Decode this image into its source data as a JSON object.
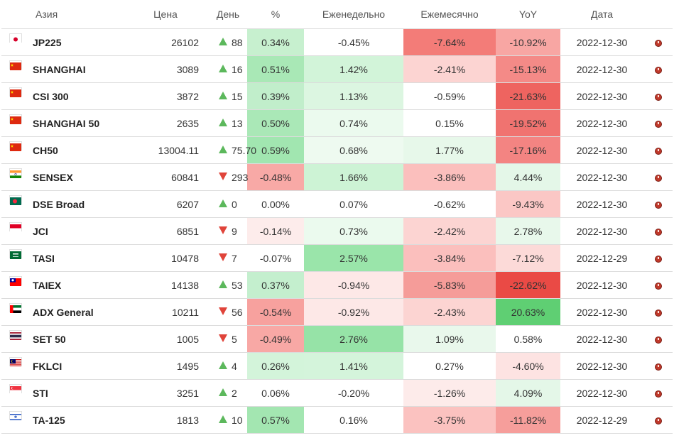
{
  "header": {
    "region": "Азия",
    "price": "Цена",
    "day": "День",
    "pct": "%",
    "weekly": "Еженедельно",
    "monthly": "Ежемесячно",
    "yoy": "YoY",
    "date": "Дата"
  },
  "colors": {
    "up": "#5cb85c",
    "down": "#e0443a"
  },
  "rows": [
    {
      "flag": "japan-flag",
      "name": "JP225",
      "price": "26102",
      "dir": "up",
      "day": "88",
      "pct": "0.34%",
      "weekly": "-0.45%",
      "monthly": "-7.64%",
      "yoy": "-10.92%",
      "date": "2022-12-30",
      "c_pct": "#c7f0cf",
      "c_weekly": "#ffffff",
      "c_monthly": "#f37c78",
      "c_yoy": "#f8a6a3"
    },
    {
      "flag": "china-flag",
      "name": "SHANGHAI",
      "price": "3089",
      "dir": "up",
      "day": "16",
      "pct": "0.51%",
      "weekly": "1.42%",
      "monthly": "-2.41%",
      "yoy": "-15.13%",
      "date": "2022-12-30",
      "c_pct": "#a9e8b6",
      "c_weekly": "#d2f4d9",
      "c_monthly": "#fcd4d2",
      "c_yoy": "#f48a87"
    },
    {
      "flag": "china-flag",
      "name": "CSI 300",
      "price": "3872",
      "dir": "up",
      "day": "15",
      "pct": "0.39%",
      "weekly": "1.13%",
      "monthly": "-0.59%",
      "yoy": "-21.63%",
      "date": "2022-12-30",
      "c_pct": "#c1eecb",
      "c_weekly": "#dcf6e1",
      "c_monthly": "#ffffff",
      "c_yoy": "#ee6460"
    },
    {
      "flag": "china-flag",
      "name": "SHANGHAI 50",
      "price": "2635",
      "dir": "up",
      "day": "13",
      "pct": "0.50%",
      "weekly": "0.74%",
      "monthly": "0.15%",
      "yoy": "-19.52%",
      "date": "2022-12-30",
      "c_pct": "#aae8b7",
      "c_weekly": "#ebfaee",
      "c_monthly": "#ffffff",
      "c_yoy": "#f07370"
    },
    {
      "flag": "china-flag",
      "name": "CH50",
      "price": "13004.11",
      "dir": "up",
      "day": "75.70",
      "pct": "0.59%",
      "weekly": "0.68%",
      "monthly": "1.77%",
      "yoy": "-17.16%",
      "date": "2022-12-30",
      "c_pct": "#a1e6b0",
      "c_weekly": "#eefaf0",
      "c_monthly": "#e7f8ea",
      "c_yoy": "#f38482"
    },
    {
      "flag": "india-flag",
      "name": "SENSEX",
      "price": "60841",
      "dir": "down",
      "day": "293",
      "pct": "-0.48%",
      "weekly": "1.66%",
      "monthly": "-3.86%",
      "yoy": "4.44%",
      "date": "2022-12-30",
      "c_pct": "#f8a9a6",
      "c_weekly": "#cdf3d5",
      "c_monthly": "#fbbfbd",
      "c_yoy": "#e4f7e8"
    },
    {
      "flag": "bangladesh-flag",
      "name": "DSE Broad",
      "price": "6207",
      "dir": "up",
      "day": "0",
      "pct": "0.00%",
      "weekly": "0.07%",
      "monthly": "-0.62%",
      "yoy": "-9.43%",
      "date": "2022-12-30",
      "c_pct": "#ffffff",
      "c_weekly": "#ffffff",
      "c_monthly": "#ffffff",
      "c_yoy": "#fbc7c5"
    },
    {
      "flag": "indonesia-flag",
      "name": "JCI",
      "price": "6851",
      "dir": "down",
      "day": "9",
      "pct": "-0.14%",
      "weekly": "0.73%",
      "monthly": "-2.42%",
      "yoy": "2.78%",
      "date": "2022-12-30",
      "c_pct": "#fdeceb",
      "c_weekly": "#ebfaee",
      "c_monthly": "#fcd4d2",
      "c_yoy": "#e8f8eb"
    },
    {
      "flag": "saudi-flag",
      "name": "TASI",
      "price": "10478",
      "dir": "down",
      "day": "7",
      "pct": "-0.07%",
      "weekly": "2.57%",
      "monthly": "-3.84%",
      "yoy": "-7.12%",
      "date": "2022-12-29",
      "c_pct": "#ffffff",
      "c_weekly": "#9ae5aa",
      "c_monthly": "#fbbfbd",
      "c_yoy": "#fcdad8"
    },
    {
      "flag": "taiwan-flag",
      "name": "TAIEX",
      "price": "14138",
      "dir": "up",
      "day": "53",
      "pct": "0.37%",
      "weekly": "-0.94%",
      "monthly": "-5.83%",
      "yoy": "-22.62%",
      "date": "2022-12-30",
      "c_pct": "#c4efce",
      "c_weekly": "#fde8e7",
      "c_monthly": "#f59c99",
      "c_yoy": "#ea4a45"
    },
    {
      "flag": "uae-flag",
      "name": "ADX General",
      "price": "10211",
      "dir": "down",
      "day": "56",
      "pct": "-0.54%",
      "weekly": "-0.92%",
      "monthly": "-2.43%",
      "yoy": "20.63%",
      "date": "2022-12-30",
      "c_pct": "#f7a19e",
      "c_weekly": "#fde8e7",
      "c_monthly": "#fcd4d2",
      "c_yoy": "#5fcf73"
    },
    {
      "flag": "thailand-flag",
      "name": "SET 50",
      "price": "1005",
      "dir": "down",
      "day": "5",
      "pct": "-0.49%",
      "weekly": "2.76%",
      "monthly": "1.09%",
      "yoy": "0.58%",
      "date": "2022-12-30",
      "c_pct": "#f8a8a5",
      "c_weekly": "#96e3a7",
      "c_monthly": "#e9f8ec",
      "c_yoy": "#ffffff"
    },
    {
      "flag": "malaysia-flag",
      "name": "FKLCI",
      "price": "1495",
      "dir": "up",
      "day": "4",
      "pct": "0.26%",
      "weekly": "1.41%",
      "monthly": "0.27%",
      "yoy": "-4.60%",
      "date": "2022-12-30",
      "c_pct": "#d3f4da",
      "c_weekly": "#d4f4db",
      "c_monthly": "#ffffff",
      "c_yoy": "#fde3e2"
    },
    {
      "flag": "singapore-flag",
      "name": "STI",
      "price": "3251",
      "dir": "up",
      "day": "2",
      "pct": "0.06%",
      "weekly": "-0.20%",
      "monthly": "-1.26%",
      "yoy": "4.09%",
      "date": "2022-12-30",
      "c_pct": "#ffffff",
      "c_weekly": "#ffffff",
      "c_monthly": "#fdebea",
      "c_yoy": "#e4f7e8"
    },
    {
      "flag": "israel-flag",
      "name": "TA-125",
      "price": "1813",
      "dir": "up",
      "day": "10",
      "pct": "0.57%",
      "weekly": "0.16%",
      "monthly": "-3.75%",
      "yoy": "-11.82%",
      "date": "2022-12-29",
      "c_pct": "#a3e6b1",
      "c_weekly": "#ffffff",
      "c_monthly": "#fbc2c0",
      "c_yoy": "#f69e9b"
    }
  ]
}
